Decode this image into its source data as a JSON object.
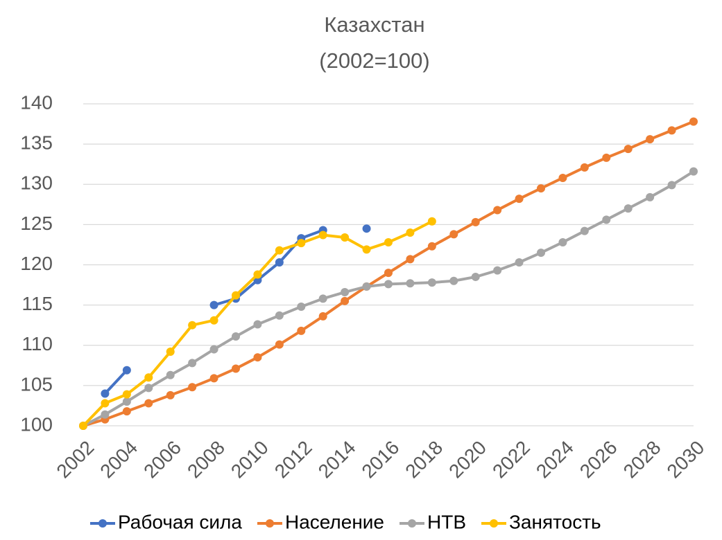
{
  "chart_data": {
    "type": "line",
    "title": "Казахстан",
    "subtitle": "(2002=100)",
    "x": [
      2002,
      2003,
      2004,
      2005,
      2006,
      2007,
      2008,
      2009,
      2010,
      2011,
      2012,
      2013,
      2014,
      2015,
      2016,
      2017,
      2018,
      2019,
      2020,
      2021,
      2022,
      2023,
      2024,
      2025,
      2026,
      2027,
      2028,
      2029,
      2030
    ],
    "xlim": [
      2002,
      2030
    ],
    "xticks": [
      2002,
      2004,
      2006,
      2008,
      2010,
      2012,
      2014,
      2016,
      2018,
      2020,
      2022,
      2024,
      2026,
      2028,
      2030
    ],
    "ylim": [
      100,
      140
    ],
    "yticks": [
      100,
      105,
      110,
      115,
      120,
      125,
      130,
      135,
      140
    ],
    "grid": true,
    "legend": "bottom",
    "series": [
      {
        "name": "Рабочая сила",
        "color": "#4472c4",
        "values": [
          null,
          104.0,
          106.9,
          null,
          null,
          null,
          115.0,
          115.8,
          118.1,
          120.3,
          123.3,
          124.3,
          null,
          124.5,
          null,
          null,
          null,
          null,
          null,
          null,
          null,
          null,
          null,
          null,
          null,
          null,
          null,
          null,
          null
        ]
      },
      {
        "name": "Население",
        "color": "#ed7d31",
        "values": [
          100,
          100.8,
          101.8,
          102.8,
          103.8,
          104.8,
          105.9,
          107.1,
          108.5,
          110.1,
          111.8,
          113.6,
          115.5,
          117.3,
          119.0,
          120.7,
          122.3,
          123.8,
          125.3,
          126.8,
          128.2,
          129.5,
          130.8,
          132.1,
          133.3,
          134.4,
          135.6,
          136.7,
          137.8
        ]
      },
      {
        "name": "НТВ",
        "color": "#a5a5a5",
        "values": [
          100,
          101.4,
          103.0,
          104.7,
          106.3,
          107.8,
          109.5,
          111.1,
          112.6,
          113.7,
          114.8,
          115.8,
          116.6,
          117.3,
          117.6,
          117.7,
          117.8,
          118.0,
          118.5,
          119.3,
          120.3,
          121.5,
          122.8,
          124.2,
          125.6,
          127.0,
          128.4,
          129.9,
          131.6
        ]
      },
      {
        "name": "Занятость",
        "color": "#ffc000",
        "values": [
          100,
          102.8,
          103.9,
          106.0,
          109.2,
          112.5,
          113.1,
          116.2,
          118.8,
          121.8,
          122.7,
          123.7,
          123.4,
          121.9,
          122.8,
          124.0,
          125.4,
          null,
          null,
          null,
          null,
          null,
          null,
          null,
          null,
          null,
          null,
          null,
          null
        ]
      }
    ]
  }
}
